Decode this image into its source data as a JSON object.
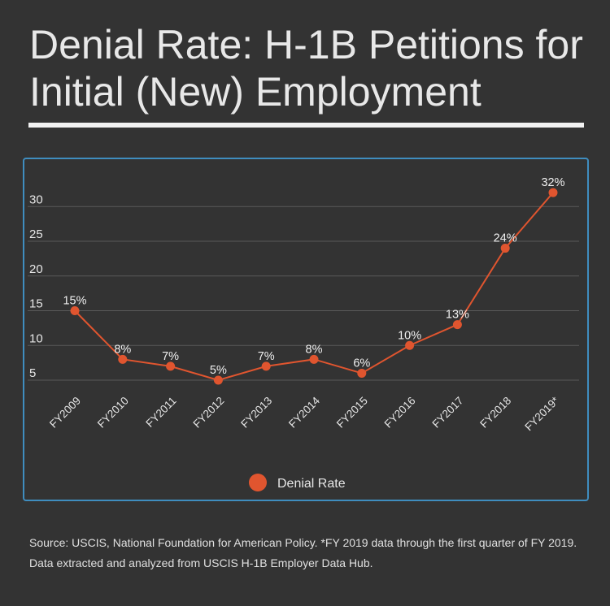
{
  "title": "Denial Rate: H-1B Petitions for Initial (New) Employment",
  "source": "Source: USCIS, National Foundation for American Policy. *FY 2019 data through the first quarter of FY 2019. Data extracted and analyzed from USCIS H-1B Employer Data Hub.",
  "colors": {
    "background": "#333333",
    "panel_border": "#3f8dbf",
    "series": "#e0552f",
    "text": "#e6e6e6",
    "grid": "#5a5a5a"
  },
  "chart_data": {
    "type": "line",
    "title": "",
    "xlabel": "",
    "ylabel": "",
    "ylim": [
      0,
      30
    ],
    "yticks": [
      5,
      10,
      15,
      20,
      25,
      30
    ],
    "grid": true,
    "legend": "bottom-center",
    "categories": [
      "FY2009",
      "FY2010",
      "FY2011",
      "FY2012",
      "FY2013",
      "FY2014",
      "FY2015",
      "FY2016",
      "FY2017",
      "FY2018",
      "FY2019*"
    ],
    "series": [
      {
        "name": "Denial Rate",
        "color": "#e0552f",
        "values": [
          15,
          8,
          7,
          5,
          7,
          8,
          6,
          10,
          13,
          24,
          32
        ],
        "labels": [
          "15%",
          "8%",
          "7%",
          "5%",
          "7%",
          "8%",
          "6%",
          "10%",
          "13%",
          "24%",
          "32%"
        ]
      }
    ]
  }
}
